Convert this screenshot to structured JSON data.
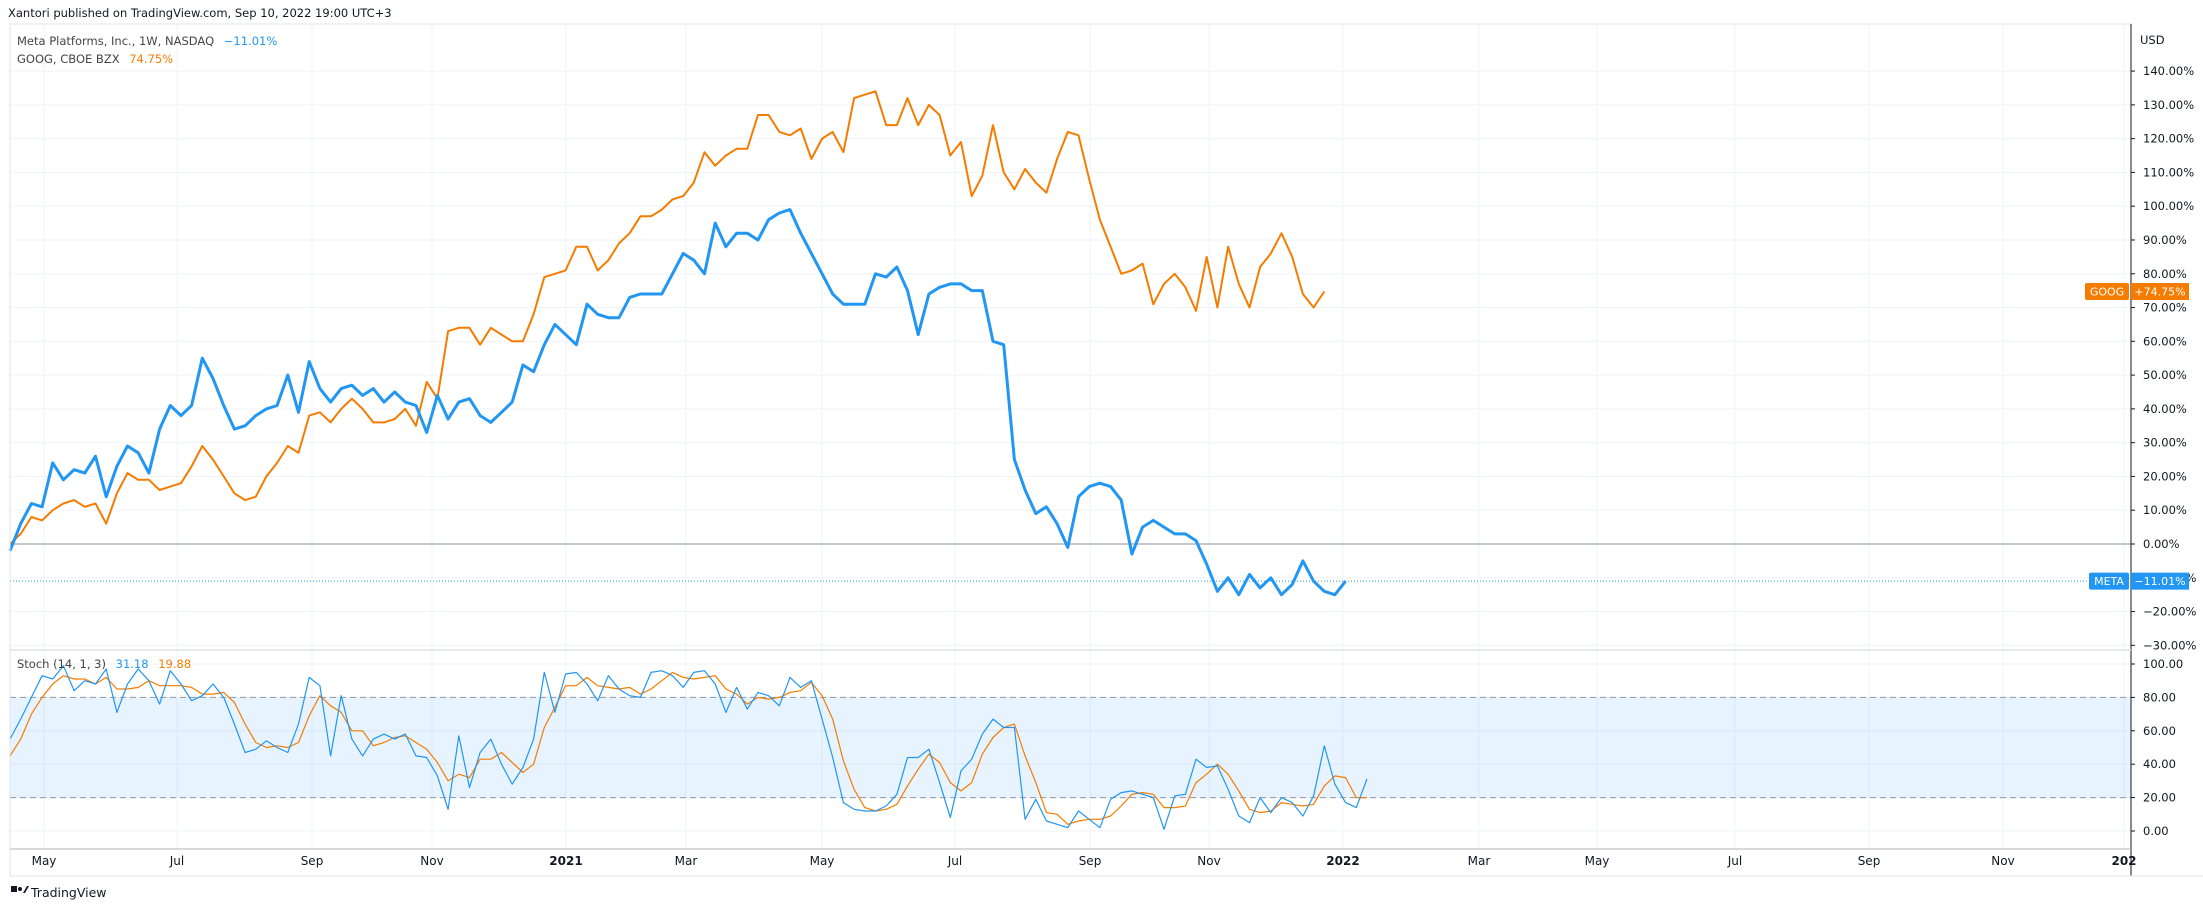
{
  "header": {
    "publish_text": "Xantori published on TradingView.com, Sep 10, 2022 19:00 UTC+3"
  },
  "footer": {
    "brand": "TradingView"
  },
  "legend": {
    "series1": {
      "name": "Meta Platforms, Inc., 1W, NASDAQ",
      "change": "−11.01%",
      "color": "#2196f3"
    },
    "series2": {
      "name": "GOOG, CBOE BZX",
      "change": "74.75%",
      "color": "#f57c00"
    },
    "stoch": {
      "name": "Stoch (14, 1, 3)",
      "k_value": "31.18",
      "d_value": "19.88"
    }
  },
  "badges": {
    "goog": {
      "symbol": "GOOG",
      "value": "+74.75%",
      "color": "#f57c00"
    },
    "meta": {
      "symbol": "META",
      "value": "−11.01%",
      "color": "#2196f3"
    }
  },
  "chart_data": [
    {
      "type": "line",
      "title": "",
      "currency": "USD",
      "y_unit": "percent change",
      "ylim": [
        -33,
        148
      ],
      "y_ticks": [
        "−30.00%",
        "−20.00%",
        "−10.00%",
        "0.00%",
        "10.00%",
        "20.00%",
        "30.00%",
        "40.00%",
        "50.00%",
        "60.00%",
        "70.00%",
        "80.00%",
        "90.00%",
        "100.00%",
        "110.00%",
        "120.00%",
        "130.00%",
        "140.00%"
      ],
      "x_labels": [
        "May",
        "Jul",
        "Sep",
        "Nov",
        "2021",
        "Mar",
        "May",
        "Jul",
        "Sep",
        "Nov",
        "2022",
        "Mar",
        "May",
        "Jul",
        "Sep",
        "Nov",
        "202"
      ],
      "grid": true,
      "series": [
        {
          "name": "META",
          "color": "#2196f3",
          "values": [
            -2,
            6,
            12,
            11,
            24,
            19,
            22,
            21,
            26,
            14,
            23,
            29,
            27,
            21,
            34,
            41,
            38,
            41,
            55,
            49,
            41,
            34,
            35,
            38,
            40,
            41,
            50,
            39,
            54,
            46,
            42,
            46,
            47,
            44,
            46,
            42,
            45,
            42,
            41,
            33,
            44,
            37,
            42,
            43,
            38,
            36,
            39,
            42,
            53,
            51,
            59,
            65,
            62,
            59,
            71,
            68,
            67,
            67,
            73,
            74,
            74,
            74,
            80,
            86,
            84,
            80,
            95,
            88,
            92,
            92,
            90,
            96,
            98,
            99,
            92,
            86,
            80,
            74,
            71,
            71,
            71,
            80,
            79,
            82,
            75,
            62,
            74,
            76,
            77,
            77,
            75,
            75,
            60,
            59,
            25,
            16,
            9,
            11,
            6,
            -1,
            14,
            17,
            18,
            17,
            13,
            -3,
            5,
            7,
            5,
            3,
            3,
            1,
            -6,
            -14,
            -10,
            -15,
            -9,
            -13,
            -10,
            -15,
            -12,
            -5,
            -11,
            -14,
            -15,
            -11
          ],
          "last_change": "−11.01%"
        },
        {
          "name": "GOOG",
          "color": "#f57c00",
          "values": [
            0,
            3,
            8,
            7,
            10,
            12,
            13,
            11,
            12,
            6,
            15,
            21,
            19,
            19,
            16,
            17,
            18,
            23,
            29,
            25,
            20,
            15,
            13,
            14,
            20,
            24,
            29,
            27,
            38,
            39,
            36,
            40,
            43,
            40,
            36,
            36,
            37,
            40,
            35,
            48,
            43,
            63,
            64,
            64,
            59,
            64,
            62,
            60,
            60,
            68,
            79,
            80,
            81,
            88,
            88,
            81,
            84,
            89,
            92,
            97,
            97,
            99,
            102,
            103,
            107,
            116,
            112,
            115,
            117,
            117,
            127,
            127,
            122,
            121,
            123,
            114,
            120,
            122,
            116,
            132,
            133,
            134,
            124,
            124,
            132,
            124,
            130,
            127,
            115,
            119,
            103,
            109,
            124,
            110,
            105,
            111,
            107,
            104,
            114,
            122,
            121,
            108,
            96,
            88,
            80,
            81,
            83,
            71,
            77,
            80,
            76,
            69,
            85,
            70,
            88,
            77,
            70,
            82,
            86,
            92,
            85,
            74,
            70,
            74.75
          ]
        }
      ]
    },
    {
      "type": "line",
      "title": "Stoch (14, 1, 3)",
      "ylim": [
        -10,
        110
      ],
      "y_ticks": [
        "0.00",
        "20.00",
        "40.00",
        "60.00",
        "80.00",
        "100.00"
      ],
      "bands": {
        "upper": 80,
        "lower": 20
      },
      "series": [
        {
          "name": "%K",
          "color": "#2196f3",
          "values": [
            55,
            67,
            80,
            93,
            91,
            99,
            84,
            90,
            88,
            97,
            71,
            88,
            97,
            90,
            76,
            96,
            88,
            78,
            81,
            88,
            80,
            64,
            47,
            49,
            54,
            50,
            47,
            64,
            92,
            87,
            45,
            81,
            55,
            45,
            55,
            58,
            55,
            58,
            45,
            44,
            33,
            13,
            57,
            26,
            47,
            55,
            40,
            28,
            38,
            55,
            95,
            71,
            94,
            95,
            88,
            78,
            93,
            85,
            81,
            80,
            95,
            96,
            93,
            86,
            95,
            96,
            88,
            71,
            86,
            73,
            83,
            81,
            75,
            92,
            86,
            90,
            67,
            44,
            17,
            13,
            12,
            12,
            15,
            22,
            44,
            44,
            49,
            29,
            8,
            36,
            43,
            58,
            67,
            62,
            62,
            7,
            19,
            6,
            4,
            2,
            12,
            7,
            2,
            19,
            23,
            24,
            22,
            20,
            1,
            21,
            22,
            43,
            38,
            39,
            25,
            9,
            5,
            20,
            11,
            20,
            17,
            9,
            21,
            51,
            28,
            17,
            14,
            31.18
          ]
        },
        {
          "name": "%D",
          "color": "#f57c00",
          "values": [
            45,
            55,
            70,
            80,
            88,
            93,
            91,
            91,
            88,
            92,
            85,
            85,
            86,
            90,
            87,
            87,
            87,
            86,
            82,
            82,
            83,
            77,
            64,
            53,
            50,
            51,
            50,
            53,
            69,
            81,
            75,
            71,
            60,
            60,
            51,
            53,
            56,
            57,
            53,
            49,
            41,
            30,
            34,
            32,
            43,
            43,
            47,
            41,
            35,
            40,
            62,
            74,
            87,
            87,
            92,
            87,
            86,
            85,
            86,
            82,
            85,
            90,
            95,
            92,
            91,
            92,
            93,
            85,
            82,
            76,
            80,
            79,
            80,
            83,
            84,
            89,
            81,
            67,
            42,
            25,
            14,
            12,
            13,
            16,
            27,
            37,
            46,
            41,
            29,
            24,
            29,
            46,
            56,
            62,
            64,
            45,
            29,
            11,
            10,
            4,
            6,
            7,
            7,
            9,
            15,
            22,
            23,
            22,
            14,
            14,
            15,
            29,
            34,
            40,
            34,
            24,
            13,
            11,
            12,
            17,
            16,
            15,
            16,
            27,
            33,
            32,
            20,
            19.88
          ]
        }
      ]
    }
  ]
}
